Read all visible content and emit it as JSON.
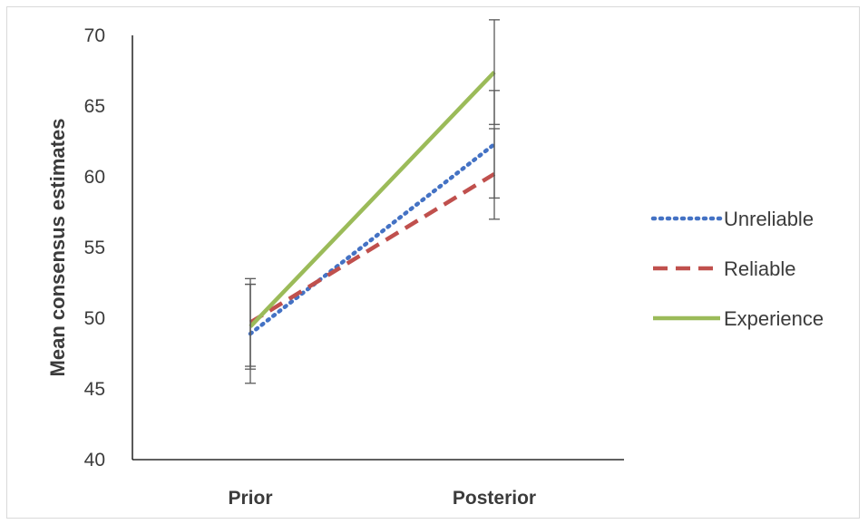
{
  "chart_data": {
    "type": "line",
    "title": "",
    "xlabel": "",
    "ylabel": "Mean consensus estimates",
    "categories": [
      "Prior",
      "Posterior"
    ],
    "ylim": [
      40,
      70
    ],
    "yticks": [
      40,
      45,
      50,
      55,
      60,
      65,
      70
    ],
    "grid": false,
    "legend_position": "right",
    "series": [
      {
        "name": "Unreliable",
        "values": [
          48.9,
          62.3
        ],
        "error": [
          3.5,
          3.8
        ],
        "color": "#4472c4",
        "style": "dotted"
      },
      {
        "name": "Reliable",
        "values": [
          49.7,
          60.2
        ],
        "error": [
          3.1,
          3.2
        ],
        "color": "#c0504d",
        "style": "dashed"
      },
      {
        "name": "Experience",
        "values": [
          49.4,
          67.4
        ],
        "error": [
          3.0,
          3.7
        ],
        "color": "#9bbb59",
        "style": "solid"
      }
    ]
  }
}
